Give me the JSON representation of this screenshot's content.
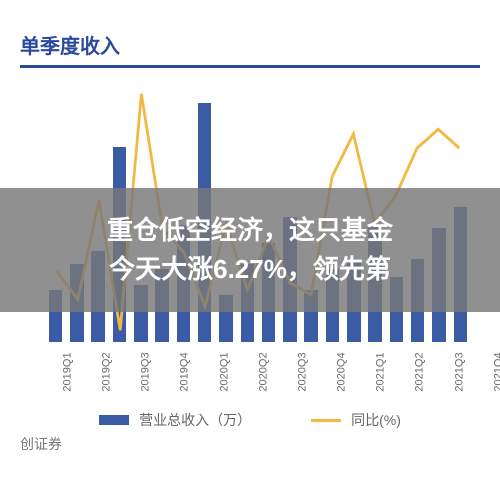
{
  "chart": {
    "title": "单季度收入",
    "title_color": "#2b4a9b",
    "title_fontsize": 20,
    "underline_color": "#2b4a9b",
    "background": "#ffffff",
    "bar_color": "#3b5ba5",
    "line_color": "#f2b844",
    "overlay_bg": "rgba(120,120,120,0.82)",
    "categories": [
      "2019Q1",
      "2019Q2",
      "2019Q3",
      "2019Q4",
      "2020Q1",
      "2020Q2",
      "2020Q3",
      "2020Q4",
      "2021Q1",
      "2021Q2",
      "2021Q3",
      "2021Q4",
      "2022Q1",
      "2022Q2",
      "2022Q3",
      "2022Q4",
      "2023Q1",
      "2023Q2",
      "2023Q3",
      "2023Q4"
    ],
    "bar_values": [
      20,
      30,
      35,
      75,
      22,
      28,
      45,
      92,
      18,
      30,
      38,
      48,
      20,
      28,
      32,
      45,
      25,
      32,
      44,
      52
    ],
    "bar_ymax": 100,
    "line_values": [
      20,
      8,
      50,
      -5,
      95,
      38,
      28,
      5,
      40,
      12,
      35,
      15,
      10,
      60,
      78,
      40,
      52,
      72,
      80,
      72
    ],
    "line_ymin": -10,
    "line_ymax": 100,
    "legend": {
      "bar_label": "营业总收入（万）",
      "line_label": "同比(%)"
    }
  },
  "overlay": {
    "line1": "重仓低空经济，这只基金",
    "line2": "今天大涨6.27%，领先第"
  },
  "footer": "创证券"
}
